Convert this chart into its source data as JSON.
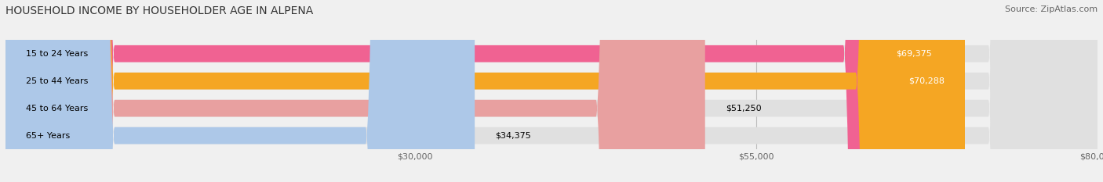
{
  "title": "HOUSEHOLD INCOME BY HOUSEHOLDER AGE IN ALPENA",
  "source": "Source: ZipAtlas.com",
  "categories": [
    "15 to 24 Years",
    "25 to 44 Years",
    "45 to 64 Years",
    "65+ Years"
  ],
  "values": [
    69375,
    70288,
    51250,
    34375
  ],
  "bar_colors": [
    "#f06292",
    "#f5a623",
    "#e8a0a0",
    "#adc8e8"
  ],
  "value_labels": [
    "$69,375",
    "$70,288",
    "$51,250",
    "$34,375"
  ],
  "value_inside": [
    true,
    true,
    false,
    false
  ],
  "xmax": 80000,
  "xticks": [
    30000,
    55000,
    80000
  ],
  "xtick_labels": [
    "$30,000",
    "$55,000",
    "$80,000"
  ],
  "title_fontsize": 10,
  "source_fontsize": 8,
  "label_fontsize": 8,
  "value_fontsize": 8,
  "tick_fontsize": 8,
  "background_color": "#f0f0f0"
}
